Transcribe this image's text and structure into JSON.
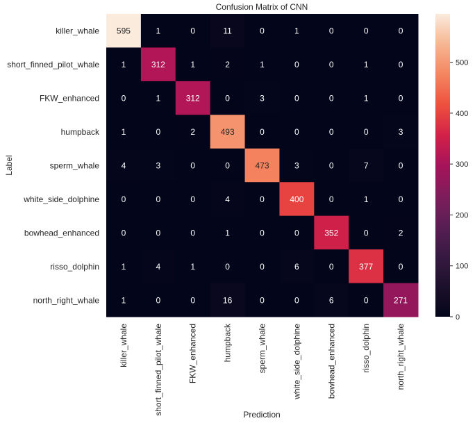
{
  "chart_data": {
    "type": "heatmap",
    "title": "Confusion Matrix of CNN",
    "xlabel": "Prediction",
    "ylabel": "Label",
    "x_categories": [
      "killer_whale",
      "short_finned_pilot_whale",
      "FKW_enhanced",
      "humpback",
      "sperm_whale",
      "white_side_dolphine",
      "bowhead_enhanced",
      "risso_dolphin",
      "north_right_whale"
    ],
    "y_categories": [
      "killer_whale",
      "short_finned_pilot_whale",
      "FKW_enhanced",
      "humpback",
      "sperm_whale",
      "white_side_dolphine",
      "bowhead_enhanced",
      "risso_dolphin",
      "north_right_whale"
    ],
    "values": [
      [
        595,
        1,
        0,
        11,
        0,
        1,
        0,
        0,
        0
      ],
      [
        1,
        312,
        1,
        2,
        1,
        0,
        0,
        1,
        0
      ],
      [
        0,
        1,
        312,
        0,
        3,
        0,
        0,
        1,
        0
      ],
      [
        1,
        0,
        2,
        493,
        0,
        0,
        0,
        0,
        3
      ],
      [
        4,
        3,
        0,
        0,
        473,
        3,
        0,
        7,
        0
      ],
      [
        0,
        0,
        0,
        4,
        0,
        400,
        0,
        1,
        0
      ],
      [
        0,
        0,
        0,
        1,
        0,
        0,
        352,
        0,
        2
      ],
      [
        1,
        4,
        1,
        0,
        0,
        6,
        0,
        377,
        0
      ],
      [
        1,
        0,
        0,
        16,
        0,
        0,
        6,
        0,
        271
      ]
    ],
    "colormap": "rocket",
    "color_range": [
      0,
      595
    ],
    "colorbar_ticks": [
      0,
      100,
      200,
      300,
      400,
      500
    ],
    "annotations": true,
    "grid": false,
    "legend": "colorbar-right"
  }
}
